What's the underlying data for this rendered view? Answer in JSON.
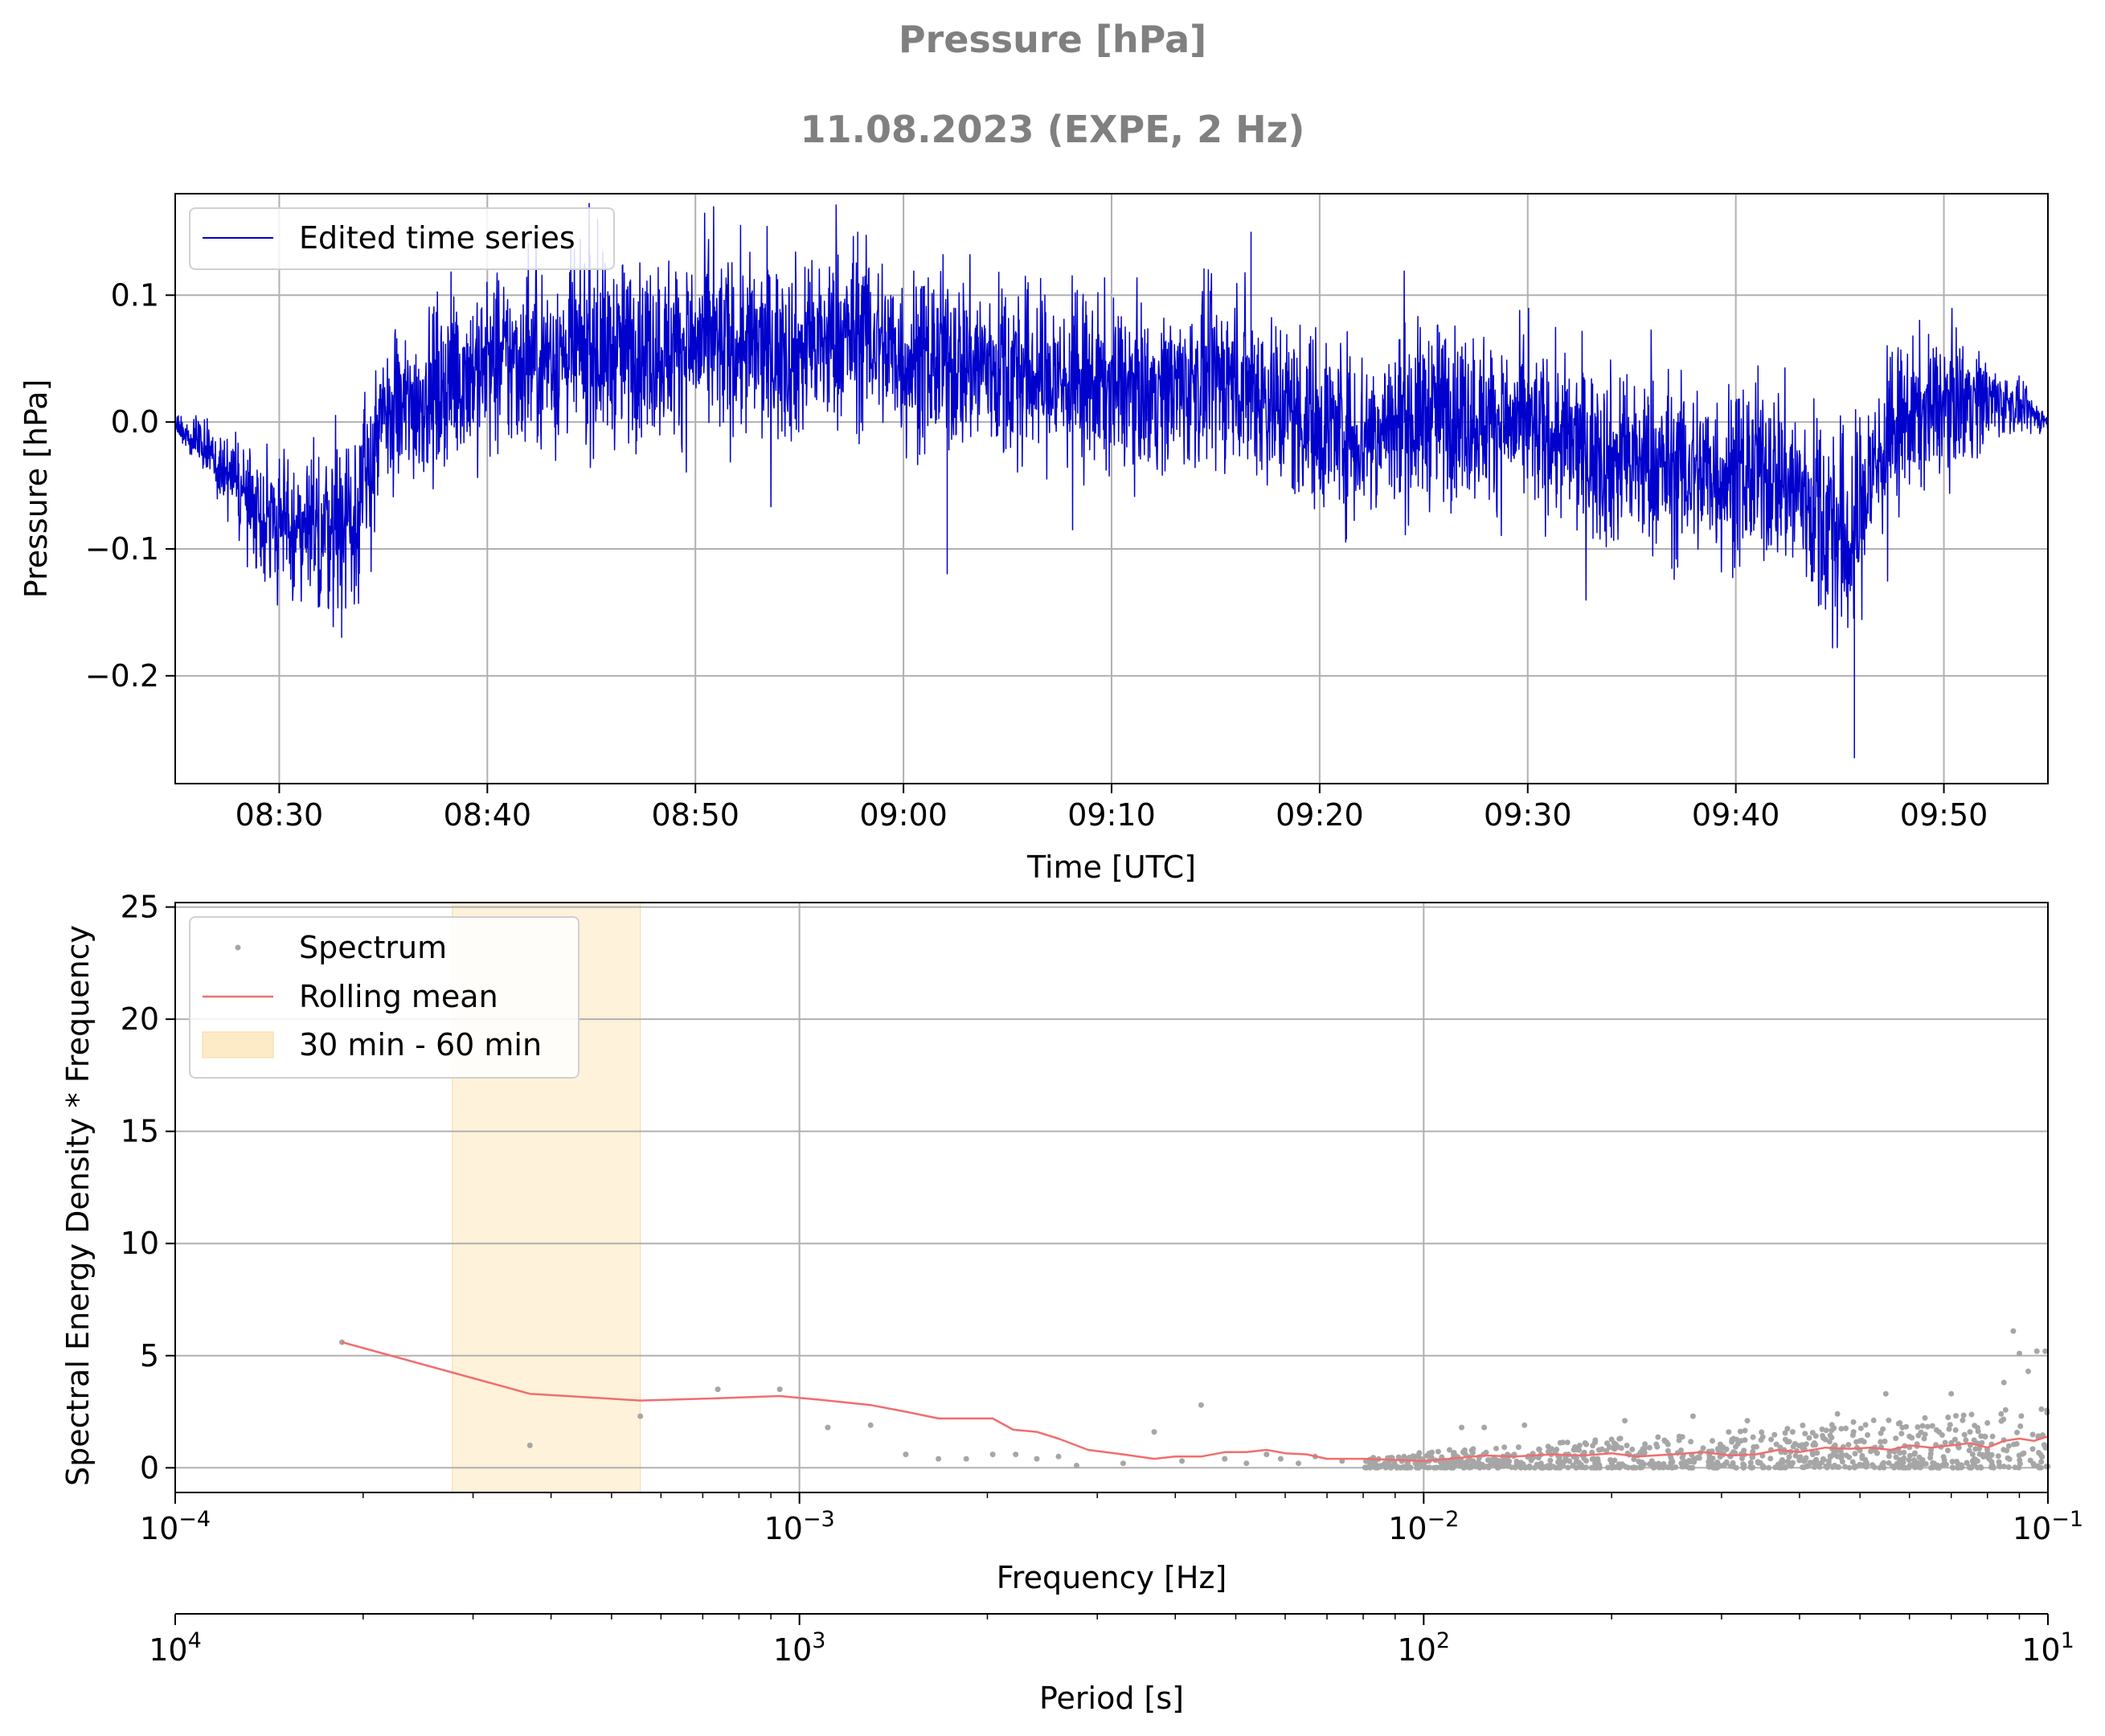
{
  "figure": {
    "title": "Pressure [hPa]",
    "subtitle": "11.08.2023 (EXPE, 2 Hz)"
  },
  "chart_data": [
    {
      "type": "line",
      "xlabel": "Time [UTC]",
      "ylabel": "Pressure [hPa]",
      "xlim": [
        "08:25",
        "09:55"
      ],
      "ylim": [
        -0.285,
        0.18
      ],
      "x_ticks": [
        "08:30",
        "08:40",
        "08:50",
        "09:00",
        "09:10",
        "09:20",
        "09:30",
        "09:40",
        "09:50"
      ],
      "y_ticks": [
        {
          "value": 0.1,
          "label": "0.1"
        },
        {
          "value": 0.0,
          "label": "0.0"
        },
        {
          "value": -0.1,
          "label": "−0.1"
        },
        {
          "value": -0.2,
          "label": "−0.2"
        }
      ],
      "grid": true,
      "legend": {
        "placement": "upper-left",
        "entries": [
          "Edited time series"
        ]
      },
      "series": [
        {
          "name": "Edited time series",
          "color": "#0000cc",
          "sampling_hz": 2,
          "envelope": [
            {
              "time": "08:25",
              "mean": 0.0,
              "noise": 0.003
            },
            {
              "time": "08:27",
              "mean": -0.03,
              "noise": 0.015
            },
            {
              "time": "08:29",
              "mean": -0.07,
              "noise": 0.025
            },
            {
              "time": "08:31",
              "mean": -0.09,
              "noise": 0.035
            },
            {
              "time": "08:33",
              "mean": -0.08,
              "noise": 0.035
            },
            {
              "time": "08:34",
              "mean": -0.06,
              "noise": 0.035
            },
            {
              "time": "08:35",
              "mean": 0.0,
              "noise": 0.03
            },
            {
              "time": "08:37",
              "mean": 0.02,
              "noise": 0.03
            },
            {
              "time": "08:39",
              "mean": 0.04,
              "noise": 0.035
            },
            {
              "time": "08:42",
              "mean": 0.05,
              "noise": 0.035
            },
            {
              "time": "08:46",
              "mean": 0.055,
              "noise": 0.035
            },
            {
              "time": "08:50",
              "mean": 0.06,
              "noise": 0.035
            },
            {
              "time": "08:55",
              "mean": 0.055,
              "noise": 0.035
            },
            {
              "time": "08:58",
              "mean": 0.07,
              "noise": 0.035
            },
            {
              "time": "09:00",
              "mean": 0.05,
              "noise": 0.035
            },
            {
              "time": "09:04",
              "mean": 0.045,
              "noise": 0.035
            },
            {
              "time": "09:08",
              "mean": 0.03,
              "noise": 0.035
            },
            {
              "time": "09:12",
              "mean": 0.025,
              "noise": 0.03
            },
            {
              "time": "09:16",
              "mean": 0.035,
              "noise": 0.035
            },
            {
              "time": "09:19",
              "mean": 0.005,
              "noise": 0.035
            },
            {
              "time": "09:22",
              "mean": -0.01,
              "noise": 0.035
            },
            {
              "time": "09:26",
              "mean": 0.01,
              "noise": 0.035
            },
            {
              "time": "09:30",
              "mean": -0.005,
              "noise": 0.03
            },
            {
              "time": "09:34",
              "mean": -0.03,
              "noise": 0.035
            },
            {
              "time": "09:38",
              "mean": -0.04,
              "noise": 0.035
            },
            {
              "time": "09:42",
              "mean": -0.04,
              "noise": 0.035
            },
            {
              "time": "09:44",
              "mean": -0.07,
              "noise": 0.04
            },
            {
              "time": "09:45.5",
              "mean": -0.1,
              "noise": 0.045
            },
            {
              "time": "09:46.5",
              "mean": -0.04,
              "noise": 0.035
            },
            {
              "time": "09:48",
              "mean": 0.0,
              "noise": 0.03
            },
            {
              "time": "09:51",
              "mean": 0.02,
              "noise": 0.025
            },
            {
              "time": "09:53",
              "mean": 0.015,
              "noise": 0.012
            },
            {
              "time": "09:55",
              "mean": 0.0,
              "noise": 0.004
            }
          ],
          "extremes": [
            {
              "time": "08:33",
              "value": -0.17
            },
            {
              "time": "08:45.3",
              "value": 0.16
            },
            {
              "time": "08:57.8",
              "value": 0.15
            },
            {
              "time": "09:02.1",
              "value": -0.12
            },
            {
              "time": "09:16.7",
              "value": 0.15
            },
            {
              "time": "09:45.7",
              "value": -0.265
            }
          ]
        }
      ]
    },
    {
      "type": "scatter",
      "xlabel": "Frequency [Hz]",
      "ylabel": "Spectral Energy Density * Frequency",
      "x_scale": "log",
      "xlim": [
        0.0001,
        0.1
      ],
      "ylim": [
        -1.1,
        25.2
      ],
      "x_ticks": [
        {
          "value": 0.0001,
          "base": "10",
          "exp": "−4"
        },
        {
          "value": 0.001,
          "base": "10",
          "exp": "−3"
        },
        {
          "value": 0.01,
          "base": "10",
          "exp": "−2"
        },
        {
          "value": 0.1,
          "base": "10",
          "exp": "−1"
        }
      ],
      "y_ticks": [
        {
          "value": 0,
          "label": "0"
        },
        {
          "value": 5,
          "label": "5"
        },
        {
          "value": 10,
          "label": "10"
        },
        {
          "value": 15,
          "label": "15"
        },
        {
          "value": 20,
          "label": "20"
        },
        {
          "value": 25,
          "label": "25"
        }
      ],
      "grid": true,
      "legend": {
        "placement": "upper-left",
        "entries": [
          "Spectrum",
          "Rolling mean",
          "30 min - 60 min"
        ]
      },
      "band": {
        "name": "30 min - 60 min",
        "x": [
          0.000278,
          0.000556
        ],
        "color": "#fdebc8"
      },
      "series": [
        {
          "name": "Spectrum",
          "color": "#a6a6a6",
          "points": [
            [
              0.000185,
              5.6
            ],
            [
              0.00037,
              1.0
            ],
            [
              0.000556,
              2.3
            ],
            [
              0.00074,
              3.5
            ],
            [
              0.00093,
              3.5
            ],
            [
              0.00111,
              1.8
            ],
            [
              0.0013,
              1.9
            ],
            [
              0.00148,
              0.6
            ],
            [
              0.00167,
              0.4
            ],
            [
              0.00185,
              0.4
            ],
            [
              0.00204,
              0.6
            ],
            [
              0.00222,
              0.6
            ],
            [
              0.0024,
              0.4
            ],
            [
              0.0026,
              0.5
            ],
            [
              0.00278,
              0.1
            ],
            [
              0.0033,
              0.2
            ],
            [
              0.0037,
              1.6
            ],
            [
              0.0041,
              0.3
            ],
            [
              0.0044,
              2.8
            ],
            [
              0.0048,
              0.4
            ],
            [
              0.0052,
              0.2
            ],
            [
              0.0056,
              0.6
            ],
            [
              0.0059,
              0.4
            ],
            [
              0.0063,
              0.2
            ],
            [
              0.0067,
              0.5
            ],
            [
              0.0074,
              0.3
            ],
            [
              0.0083,
              0.4
            ],
            [
              0.0093,
              0.5
            ],
            [
              0.0102,
              0.3
            ],
            [
              0.011,
              0.8
            ],
            [
              0.0115,
              1.8
            ],
            [
              0.012,
              0.3
            ],
            [
              0.0125,
              1.8
            ],
            [
              0.0135,
              0.4
            ],
            [
              0.0145,
              1.9
            ],
            [
              0.016,
              0.6
            ],
            [
              0.0175,
              0.5
            ],
            [
              0.019,
              0.4
            ],
            [
              0.021,
              2.1
            ],
            [
              0.023,
              0.9
            ],
            [
              0.025,
              0.3
            ],
            [
              0.027,
              2.3
            ],
            [
              0.029,
              1.2
            ],
            [
              0.031,
              0.5
            ],
            [
              0.033,
              2.1
            ],
            [
              0.036,
              0.8
            ],
            [
              0.039,
              1.6
            ],
            [
              0.042,
              0.6
            ],
            [
              0.046,
              2.4
            ],
            [
              0.05,
              1.2
            ],
            [
              0.055,
              3.3
            ],
            [
              0.06,
              1.4
            ],
            [
              0.065,
              0.8
            ],
            [
              0.07,
              3.3
            ],
            [
              0.075,
              1.6
            ],
            [
              0.08,
              2.0
            ],
            [
              0.085,
              3.8
            ],
            [
              0.088,
              6.1
            ],
            [
              0.09,
              5.1
            ],
            [
              0.093,
              4.3
            ],
            [
              0.096,
              5.2
            ],
            [
              0.099,
              5.2
            ]
          ]
        },
        {
          "name": "Rolling mean",
          "color": "#f26d6d",
          "points": [
            [
              0.000185,
              5.6
            ],
            [
              0.00037,
              3.3
            ],
            [
              0.000556,
              3.0
            ],
            [
              0.00074,
              3.1
            ],
            [
              0.00093,
              3.2
            ],
            [
              0.00111,
              3.0
            ],
            [
              0.0013,
              2.8
            ],
            [
              0.00148,
              2.5
            ],
            [
              0.00167,
              2.2
            ],
            [
              0.00204,
              2.2
            ],
            [
              0.0022,
              1.7
            ],
            [
              0.0024,
              1.6
            ],
            [
              0.0026,
              1.3
            ],
            [
              0.0029,
              0.8
            ],
            [
              0.0033,
              0.6
            ],
            [
              0.0037,
              0.4
            ],
            [
              0.004,
              0.5
            ],
            [
              0.0044,
              0.5
            ],
            [
              0.0048,
              0.7
            ],
            [
              0.0052,
              0.7
            ],
            [
              0.0056,
              0.8
            ],
            [
              0.006,
              0.65
            ],
            [
              0.0065,
              0.6
            ],
            [
              0.007,
              0.4
            ],
            [
              0.008,
              0.4
            ],
            [
              0.009,
              0.35
            ],
            [
              0.01,
              0.3
            ],
            [
              0.011,
              0.4
            ],
            [
              0.0125,
              0.55
            ],
            [
              0.014,
              0.5
            ],
            [
              0.016,
              0.6
            ],
            [
              0.018,
              0.55
            ],
            [
              0.02,
              0.65
            ],
            [
              0.022,
              0.5
            ],
            [
              0.025,
              0.6
            ],
            [
              0.028,
              0.7
            ],
            [
              0.031,
              0.55
            ],
            [
              0.034,
              0.6
            ],
            [
              0.037,
              0.8
            ],
            [
              0.04,
              0.7
            ],
            [
              0.044,
              0.9
            ],
            [
              0.048,
              0.85
            ],
            [
              0.052,
              0.9
            ],
            [
              0.056,
              0.8
            ],
            [
              0.06,
              1.0
            ],
            [
              0.065,
              0.9
            ],
            [
              0.07,
              1.0
            ],
            [
              0.075,
              1.1
            ],
            [
              0.08,
              0.9
            ],
            [
              0.085,
              1.2
            ],
            [
              0.09,
              1.3
            ],
            [
              0.095,
              1.2
            ],
            [
              0.1,
              1.4
            ]
          ]
        }
      ]
    }
  ],
  "secondary_axis": {
    "xlabel": "Period [s]",
    "scale": "log",
    "ticks": [
      {
        "base": "10",
        "exp": "4"
      },
      {
        "base": "10",
        "exp": "3"
      },
      {
        "base": "10",
        "exp": "2"
      },
      {
        "base": "10",
        "exp": "1"
      }
    ]
  }
}
